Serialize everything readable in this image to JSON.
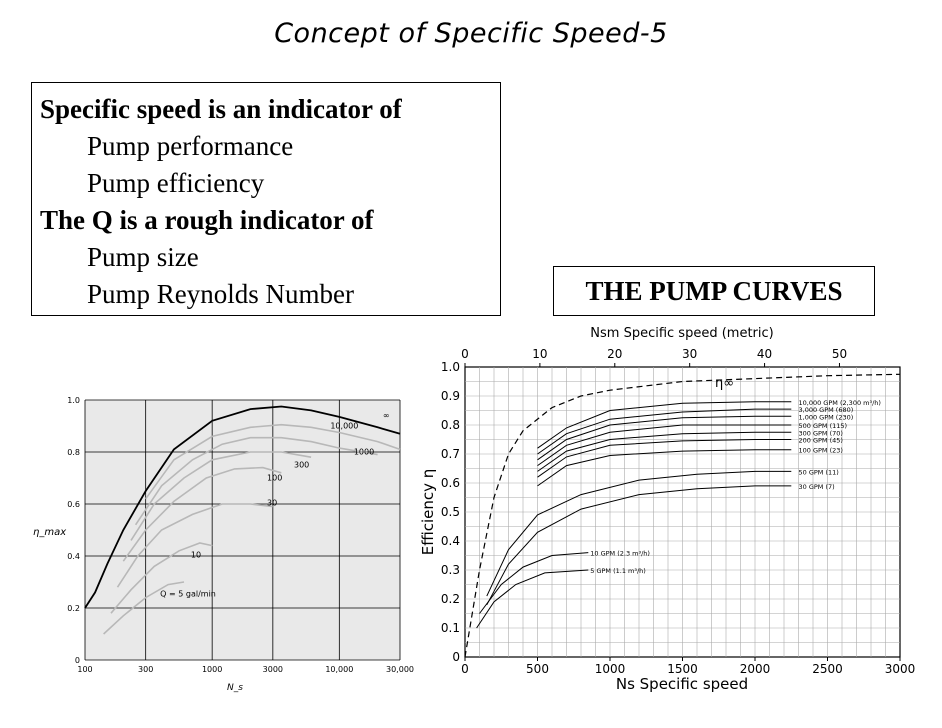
{
  "title": "Concept of Specific Speed-5",
  "textbox": {
    "heading1": "Specific speed is an indicator of",
    "items1": [
      "Pump performance",
      "Pump efficiency"
    ],
    "heading2": "The Q is a rough indicator of",
    "items2": [
      "Pump size",
      "Pump Reynolds Number"
    ]
  },
  "pump_curves_label": "THE PUMP CURVES",
  "chart_data": [
    {
      "type": "line",
      "xlabel": "N_s",
      "ylabel": "η_max",
      "xscale": "log",
      "xlim": [
        100,
        30000
      ],
      "ylim": [
        0,
        1.0
      ],
      "x_ticks": [
        "100",
        "300",
        "1000",
        "3000",
        "10,000",
        "30,000"
      ],
      "y_ticks": [
        "0",
        "0.2",
        "0.4",
        "0.6",
        "0.8",
        "1.0"
      ],
      "grid": true,
      "series": [
        {
          "name": "∞",
          "x": [
            100,
            120,
            150,
            200,
            300,
            500,
            1000,
            2000,
            3500,
            6000,
            10000,
            20000,
            30000
          ],
          "y": [
            0.2,
            0.26,
            0.37,
            0.5,
            0.65,
            0.81,
            0.92,
            0.965,
            0.975,
            0.96,
            0.935,
            0.895,
            0.87
          ]
        },
        {
          "name": "10,000",
          "x": [
            300,
            500,
            1000,
            2000,
            3500,
            6000,
            10000,
            20000,
            30000
          ],
          "y": [
            0.62,
            0.77,
            0.86,
            0.895,
            0.905,
            0.895,
            0.875,
            0.84,
            0.81
          ]
        },
        {
          "name": "1000",
          "x": [
            250,
            400,
            700,
            1200,
            2000,
            3500,
            6000,
            10000,
            20000
          ],
          "y": [
            0.52,
            0.67,
            0.77,
            0.83,
            0.855,
            0.855,
            0.84,
            0.815,
            0.79
          ]
        },
        {
          "name": "300",
          "x": [
            230,
            350,
            600,
            1000,
            2000,
            3500,
            6000
          ],
          "y": [
            0.46,
            0.6,
            0.7,
            0.77,
            0.8,
            0.8,
            0.78
          ]
        },
        {
          "name": "100",
          "x": [
            200,
            300,
            500,
            900,
            1500,
            2500,
            3500
          ],
          "y": [
            0.38,
            0.5,
            0.61,
            0.7,
            0.735,
            0.74,
            0.72
          ]
        },
        {
          "name": "30",
          "x": [
            180,
            260,
            400,
            700,
            1200,
            2000,
            3000
          ],
          "y": [
            0.28,
            0.4,
            0.5,
            0.56,
            0.6,
            0.6,
            0.59
          ]
        },
        {
          "name": "10",
          "x": [
            160,
            230,
            350,
            550,
            800,
            1000
          ],
          "y": [
            0.18,
            0.27,
            0.36,
            0.42,
            0.45,
            0.44
          ]
        },
        {
          "name": "Q = 5 gal/min",
          "x": [
            140,
            200,
            300,
            450,
            600
          ],
          "y": [
            0.1,
            0.17,
            0.24,
            0.29,
            0.3
          ]
        }
      ],
      "curve_labels": [
        "∞",
        "10,000",
        "1000",
        "300",
        "100",
        "30",
        "10",
        "Q = 5 gal/min"
      ]
    },
    {
      "type": "line",
      "title": "",
      "xlabel": "Ns  Specific speed",
      "x2label": "Nsm  Specific speed  (metric)",
      "ylabel": "Efficiency  η",
      "xlim": [
        0,
        3000
      ],
      "ylim": [
        0,
        1.0
      ],
      "x_ticks": [
        "0",
        "500",
        "1000",
        "1500",
        "2000",
        "2500",
        "3000"
      ],
      "x2_ticks": [
        "0",
        "10",
        "20",
        "30",
        "40",
        "50"
      ],
      "y_ticks": [
        "0",
        "0.1",
        "0.2",
        "0.3",
        "0.4",
        "0.5",
        "0.6",
        "0.7",
        "0.8",
        "0.9",
        "1.0"
      ],
      "grid": true,
      "limit_label": "η∞",
      "limit_curve": {
        "x": [
          0,
          100,
          200,
          300,
          400,
          600,
          800,
          1000,
          1500,
          2000,
          2500,
          3000
        ],
        "y": [
          0.0,
          0.3,
          0.55,
          0.7,
          0.78,
          0.86,
          0.9,
          0.92,
          0.95,
          0.96,
          0.97,
          0.975
        ]
      },
      "series": [
        {
          "name": "10,000 GPM (2,300 m³/h)",
          "x": [
            500,
            700,
            1000,
            1500,
            2000,
            2250
          ],
          "y": [
            0.72,
            0.79,
            0.85,
            0.875,
            0.88,
            0.88
          ]
        },
        {
          "name": "3,000 GPM (680)",
          "x": [
            500,
            700,
            1000,
            1500,
            2000,
            2250
          ],
          "y": [
            0.7,
            0.77,
            0.82,
            0.845,
            0.855,
            0.855
          ]
        },
        {
          "name": "1,000 GPM (230)",
          "x": [
            500,
            700,
            1000,
            1500,
            2000,
            2250
          ],
          "y": [
            0.68,
            0.75,
            0.8,
            0.825,
            0.83,
            0.83
          ]
        },
        {
          "name": "500 GPM (115)",
          "x": [
            500,
            700,
            1000,
            1500,
            2000,
            2250
          ],
          "y": [
            0.66,
            0.73,
            0.775,
            0.8,
            0.8,
            0.8
          ]
        },
        {
          "name": "300 GPM (70)",
          "x": [
            500,
            700,
            1000,
            1500,
            2000,
            2250
          ],
          "y": [
            0.64,
            0.71,
            0.75,
            0.77,
            0.775,
            0.775
          ]
        },
        {
          "name": "200 GPM (45)",
          "x": [
            500,
            700,
            1000,
            1500,
            2000,
            2250
          ],
          "y": [
            0.62,
            0.69,
            0.73,
            0.745,
            0.75,
            0.75
          ]
        },
        {
          "name": "100 GPM (23)",
          "x": [
            500,
            700,
            1000,
            1500,
            2000,
            2250
          ],
          "y": [
            0.59,
            0.66,
            0.695,
            0.71,
            0.715,
            0.715
          ]
        },
        {
          "name": "50 GPM (11)",
          "x": [
            150,
            300,
            500,
            800,
            1200,
            1600,
            2000,
            2250
          ],
          "y": [
            0.21,
            0.37,
            0.49,
            0.56,
            0.61,
            0.63,
            0.64,
            0.64
          ]
        },
        {
          "name": "30 GPM (7)",
          "x": [
            150,
            300,
            500,
            800,
            1200,
            1600,
            2000,
            2250
          ],
          "y": [
            0.18,
            0.32,
            0.43,
            0.51,
            0.56,
            0.58,
            0.59,
            0.59
          ]
        },
        {
          "name": "10 GPM (2.3 m³/h)",
          "x": [
            100,
            250,
            400,
            600,
            850
          ],
          "y": [
            0.15,
            0.25,
            0.31,
            0.35,
            0.36
          ]
        },
        {
          "name": "5 GPM (1.1 m³/h)",
          "x": [
            80,
            200,
            350,
            550,
            850
          ],
          "y": [
            0.1,
            0.19,
            0.25,
            0.29,
            0.3
          ]
        }
      ]
    }
  ]
}
